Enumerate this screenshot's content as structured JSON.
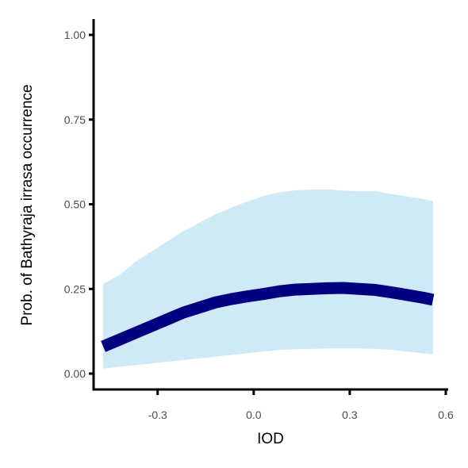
{
  "chart_data": {
    "type": "line",
    "title": "",
    "xlabel": "IOD",
    "ylabel": "Prob. of  Bathyraja irrasa  occurrence",
    "xlim": [
      -0.5,
      0.6
    ],
    "ylim": [
      0,
      1
    ],
    "x_ticks": [
      "-0.3",
      "0.0",
      "0.3",
      "0.6"
    ],
    "y_ticks": [
      "0.00",
      "0.25",
      "0.50",
      "0.75",
      "1.00"
    ],
    "grid": false,
    "legend": "none",
    "series": [
      {
        "x": [
          -0.47,
          -0.42,
          -0.37,
          -0.32,
          -0.27,
          -0.22,
          -0.17,
          -0.12,
          -0.07,
          -0.02,
          0.03,
          0.08,
          0.13,
          0.18,
          0.23,
          0.28,
          0.33,
          0.38,
          0.43,
          0.48,
          0.53,
          0.56
        ],
        "y": [
          0.08,
          0.1,
          0.12,
          0.14,
          0.16,
          0.18,
          0.195,
          0.21,
          0.22,
          0.228,
          0.235,
          0.243,
          0.248,
          0.25,
          0.252,
          0.253,
          0.25,
          0.247,
          0.24,
          0.232,
          0.224,
          0.218
        ],
        "lower": [
          0.015,
          0.02,
          0.025,
          0.03,
          0.035,
          0.04,
          0.045,
          0.05,
          0.055,
          0.06,
          0.065,
          0.07,
          0.072,
          0.073,
          0.074,
          0.074,
          0.074,
          0.073,
          0.07,
          0.065,
          0.06,
          0.057
        ],
        "upper": [
          0.265,
          0.29,
          0.33,
          0.36,
          0.39,
          0.42,
          0.445,
          0.47,
          0.49,
          0.508,
          0.524,
          0.535,
          0.541,
          0.544,
          0.544,
          0.54,
          0.539,
          0.539,
          0.53,
          0.523,
          0.515,
          0.51
        ]
      }
    ],
    "colors": {
      "line": "#000080",
      "band": "#cfe9f6",
      "axis": "#000000",
      "tick_label": "#4d4d4d"
    }
  }
}
